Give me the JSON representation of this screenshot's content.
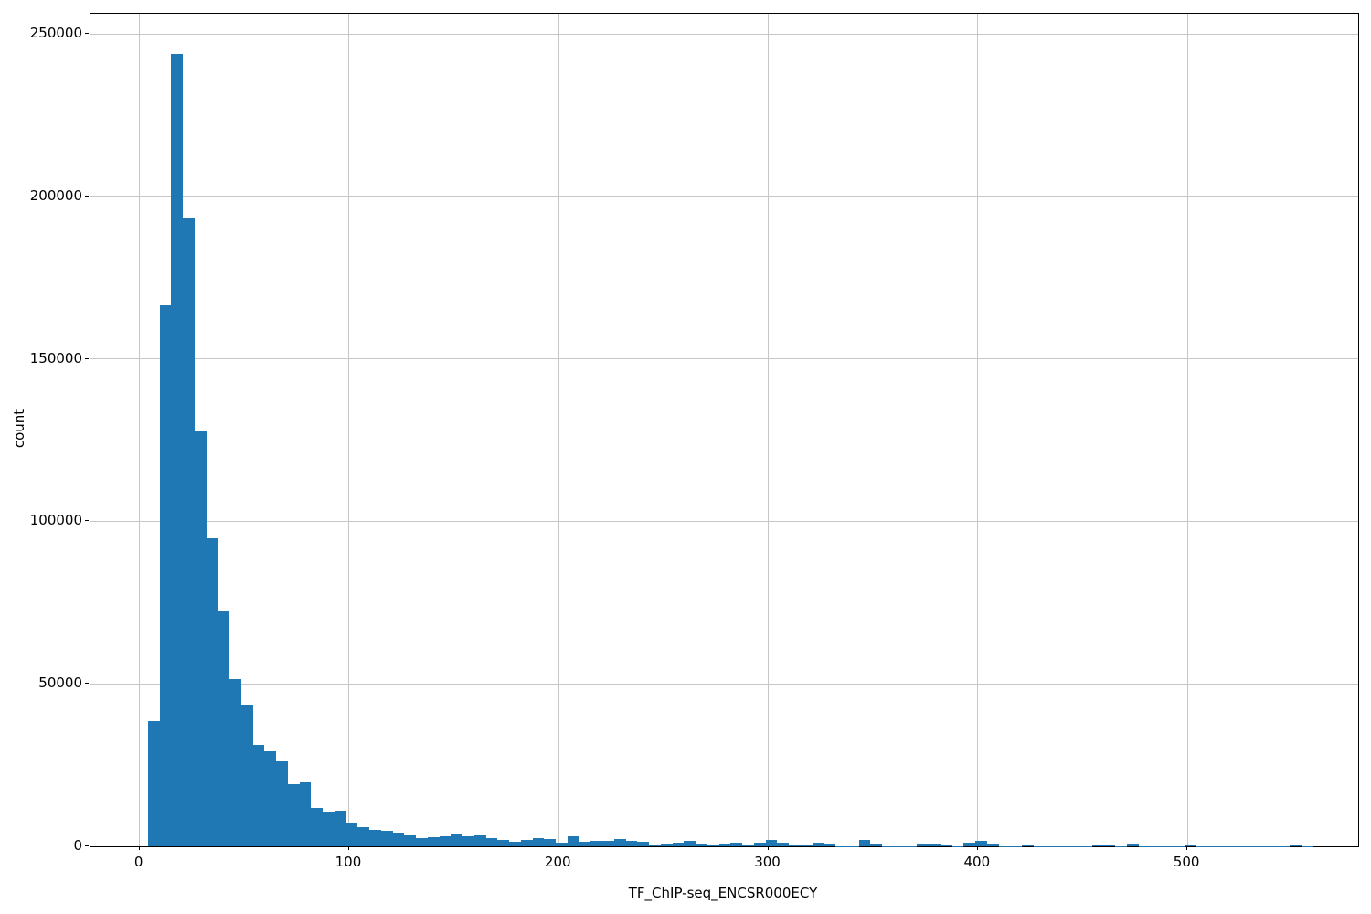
{
  "chart_data": {
    "type": "bar",
    "subtype": "histogram",
    "title": "",
    "xlabel": "TF_ChIP-seq_ENCSR000ECY",
    "ylabel": "count",
    "bar_color": "#1f77b4",
    "grid": true,
    "grid_color": "#c6c6c6",
    "xlim": [
      -23.4,
      581.5
    ],
    "ylim": [
      0,
      256200
    ],
    "xticks": [
      0,
      100,
      200,
      300,
      400,
      500
    ],
    "yticks": [
      0,
      50000,
      100000,
      150000,
      200000,
      250000
    ],
    "bin_start": 4.07,
    "bin_width": 5.56,
    "values": [
      38600,
      166400,
      243700,
      193600,
      127700,
      94700,
      72600,
      51500,
      43600,
      31100,
      29200,
      26100,
      19100,
      19700,
      11800,
      10700,
      11000,
      7300,
      5900,
      5100,
      4700,
      4300,
      3300,
      2600,
      2800,
      3100,
      3600,
      3100,
      3300,
      2600,
      1900,
      1400,
      2100,
      2600,
      2200,
      1100,
      3000,
      1400,
      1700,
      1700,
      2200,
      1700,
      1400,
      650,
      900,
      1200,
      1700,
      800,
      500,
      800,
      1000,
      600,
      1000,
      1900,
      1200,
      600,
      400,
      1100,
      800,
      100,
      100,
      1900,
      800,
      100,
      50,
      100,
      900,
      900,
      500,
      100,
      1100,
      1700,
      800,
      50,
      30,
      500,
      50,
      30,
      30,
      30,
      30,
      500,
      500,
      100,
      900,
      30,
      30,
      30,
      50,
      300,
      30,
      30,
      30,
      30,
      30,
      30,
      30,
      30,
      400,
      30
    ]
  }
}
